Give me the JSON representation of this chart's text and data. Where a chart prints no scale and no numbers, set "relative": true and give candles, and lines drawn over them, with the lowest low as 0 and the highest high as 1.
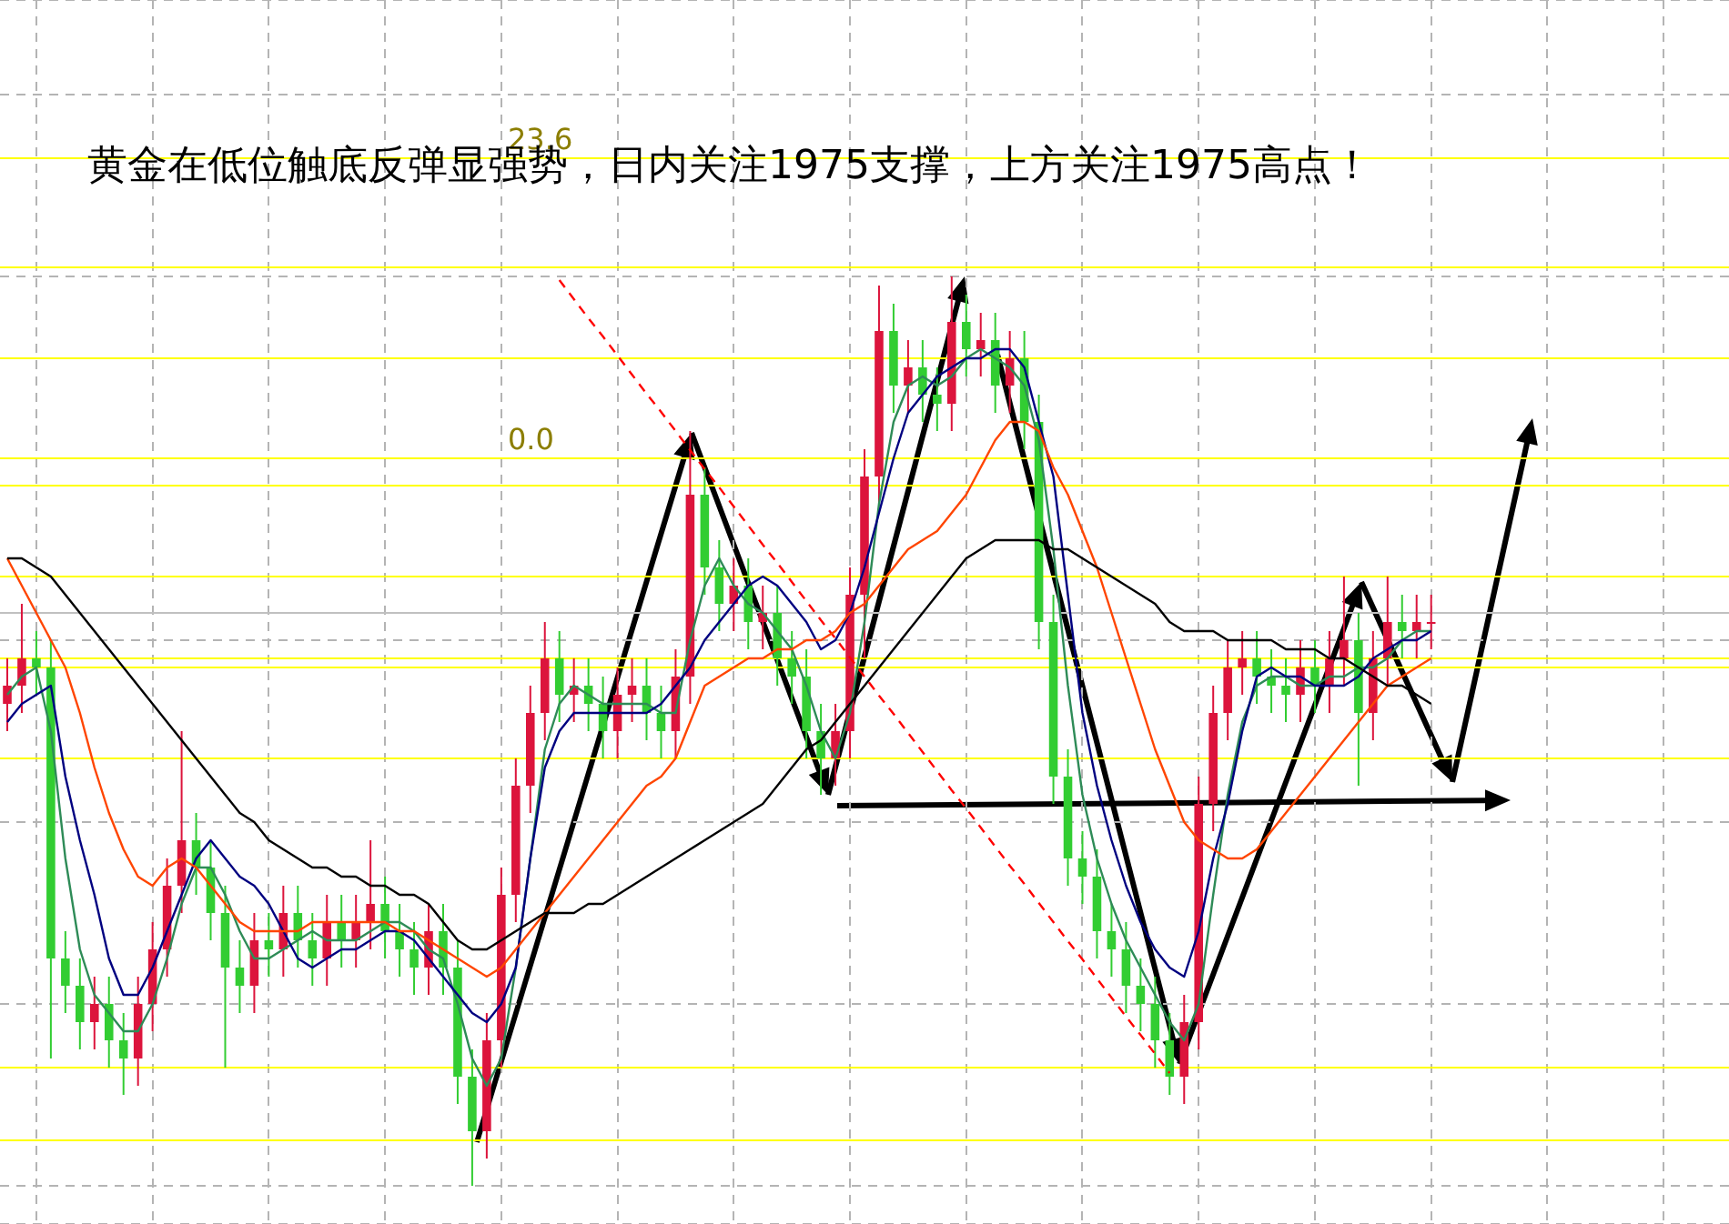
{
  "chart_data": {
    "type": "candlestick",
    "title": "黄金在低位触底反弹显强势，日内关注1975支撑，上方关注1975高点！",
    "relative": true,
    "grid": true,
    "legend": false,
    "marker": "none",
    "categories": [
      null,
      null,
      null,
      null,
      null,
      null,
      null,
      null,
      null,
      null,
      null,
      null,
      null,
      null,
      null,
      null,
      null,
      null,
      null,
      null,
      null,
      null,
      null,
      null,
      null,
      null,
      null,
      null,
      null,
      null,
      null,
      null,
      null,
      null,
      null,
      null,
      null,
      null,
      null,
      null,
      null,
      null,
      null,
      null,
      null,
      null,
      null,
      null,
      null,
      null,
      null,
      null,
      null,
      null,
      null,
      null,
      null,
      null,
      null,
      null,
      null,
      null,
      null,
      null,
      null,
      null,
      null,
      null,
      null,
      null,
      null,
      null,
      null,
      null,
      null,
      null,
      null,
      null,
      null,
      null,
      null,
      null,
      null,
      null,
      null,
      null,
      null,
      null,
      null,
      null,
      null,
      null,
      null,
      null,
      null,
      null,
      null,
      null,
      null,
      null,
      null,
      null,
      null,
      null,
      null,
      null,
      null,
      null,
      null,
      null,
      null,
      null,
      null,
      null,
      null,
      null,
      null,
      null,
      null
    ],
    "series": [
      {
        "type": "line",
        "color": "#000000",
        "values": [
          0.69,
          0.69,
          0.68,
          0.67,
          0.65,
          0.63,
          0.61,
          0.59,
          0.57,
          0.55,
          0.53,
          0.51,
          0.49,
          0.47,
          0.45,
          0.43,
          0.41,
          0.4,
          0.38,
          0.37,
          0.36,
          0.35,
          0.35,
          0.34,
          0.34,
          0.33,
          0.33,
          0.32,
          0.32,
          0.31,
          0.29,
          0.27,
          0.26,
          0.26,
          0.27,
          0.28,
          0.29,
          0.3,
          0.3,
          0.3,
          0.31,
          0.31,
          0.32,
          0.33,
          0.34,
          0.35,
          0.36,
          0.37,
          0.38,
          0.39,
          0.4,
          0.41,
          0.42,
          0.44,
          0.46,
          0.48,
          0.49,
          0.51,
          0.53,
          0.55,
          0.57,
          0.59,
          0.61,
          0.63,
          0.65,
          0.67,
          0.69,
          0.7,
          0.71,
          0.71,
          0.71,
          0.71,
          0.7,
          0.7,
          0.69,
          0.68,
          0.67,
          0.66,
          0.65,
          0.64,
          0.62,
          0.61,
          0.61,
          0.61,
          0.6,
          0.6,
          0.6,
          0.6,
          0.59,
          0.59,
          0.59,
          0.58,
          0.58,
          0.57,
          0.56,
          0.55,
          0.55,
          0.54,
          0.53,
          null,
          null,
          null,
          null,
          null,
          null,
          null,
          null,
          null,
          null,
          null,
          null,
          null,
          null,
          null,
          null,
          null,
          null,
          null,
          null
        ]
      },
      {
        "type": "line",
        "color": "#ff4500",
        "values": [
          0.69,
          0.66,
          0.63,
          0.6,
          0.57,
          0.52,
          0.46,
          0.41,
          0.37,
          0.34,
          0.33,
          0.35,
          0.36,
          0.35,
          0.33,
          0.31,
          0.29,
          0.28,
          0.28,
          0.28,
          0.28,
          0.29,
          0.29,
          0.29,
          0.29,
          0.29,
          0.29,
          0.28,
          0.28,
          0.27,
          0.26,
          0.25,
          0.24,
          0.23,
          0.24,
          0.26,
          0.28,
          0.3,
          0.32,
          0.34,
          0.36,
          0.38,
          0.4,
          0.42,
          0.44,
          0.45,
          0.47,
          0.51,
          0.55,
          0.56,
          0.57,
          0.58,
          0.58,
          0.59,
          0.59,
          0.6,
          0.6,
          0.61,
          0.63,
          0.64,
          0.66,
          0.68,
          0.7,
          0.71,
          0.72,
          0.74,
          0.76,
          0.79,
          0.82,
          0.84,
          0.84,
          0.83,
          0.79,
          0.76,
          0.72,
          0.68,
          0.63,
          0.58,
          0.53,
          0.48,
          0.44,
          0.4,
          0.38,
          0.37,
          0.36,
          0.36,
          0.37,
          0.39,
          0.41,
          0.43,
          0.45,
          0.47,
          0.49,
          0.51,
          0.53,
          0.55,
          0.56,
          0.57,
          0.58,
          null,
          null,
          null,
          null,
          null,
          null,
          null,
          null,
          null,
          null,
          null,
          null,
          null,
          null,
          null,
          null,
          null,
          null,
          null,
          null
        ]
      },
      {
        "type": "line",
        "color": "#000080",
        "values": [
          0.51,
          0.53,
          0.54,
          0.55,
          0.45,
          0.38,
          0.32,
          0.25,
          0.21,
          0.21,
          0.24,
          0.28,
          0.32,
          0.36,
          0.38,
          0.36,
          0.34,
          0.33,
          0.31,
          0.28,
          0.25,
          0.24,
          0.25,
          0.26,
          0.26,
          0.27,
          0.28,
          0.28,
          0.27,
          0.25,
          0.23,
          0.21,
          0.19,
          0.18,
          0.2,
          0.24,
          0.36,
          0.46,
          0.5,
          0.52,
          0.52,
          0.52,
          0.52,
          0.52,
          0.52,
          0.53,
          0.55,
          0.57,
          0.6,
          0.62,
          0.64,
          0.66,
          0.67,
          0.66,
          0.64,
          0.62,
          0.59,
          0.6,
          0.63,
          0.68,
          0.74,
          0.8,
          0.85,
          0.87,
          0.89,
          0.9,
          0.91,
          0.91,
          0.92,
          0.92,
          0.9,
          0.84,
          0.78,
          0.65,
          0.52,
          0.44,
          0.38,
          0.33,
          0.29,
          0.26,
          0.24,
          0.23,
          0.28,
          0.36,
          0.42,
          0.5,
          0.56,
          0.57,
          0.56,
          0.56,
          0.55,
          0.55,
          0.55,
          0.56,
          0.58,
          0.59,
          0.6,
          0.6,
          0.61,
          null,
          null,
          null,
          null,
          null,
          null,
          null,
          null,
          null,
          null,
          null,
          null,
          null,
          null,
          null,
          null,
          null,
          null,
          null,
          null
        ]
      },
      {
        "type": "line",
        "color": "#2e8b57",
        "values": [
          0.54,
          0.56,
          0.57,
          0.5,
          0.36,
          0.26,
          0.21,
          0.19,
          0.17,
          0.17,
          0.2,
          0.25,
          0.31,
          0.35,
          0.35,
          0.32,
          0.28,
          0.25,
          0.25,
          0.26,
          0.27,
          0.28,
          0.27,
          0.27,
          0.27,
          0.28,
          0.29,
          0.29,
          0.28,
          0.26,
          0.25,
          0.2,
          0.14,
          0.11,
          0.14,
          0.24,
          0.36,
          0.48,
          0.53,
          0.55,
          0.54,
          0.53,
          0.53,
          0.53,
          0.53,
          0.52,
          0.52,
          0.6,
          0.66,
          0.69,
          0.66,
          0.64,
          0.63,
          0.61,
          0.59,
          0.55,
          0.5,
          0.47,
          0.52,
          0.62,
          0.75,
          0.84,
          0.88,
          0.89,
          0.88,
          0.89,
          0.91,
          0.92,
          0.91,
          0.9,
          0.88,
          0.82,
          0.7,
          0.55,
          0.43,
          0.36,
          0.31,
          0.27,
          0.24,
          0.21,
          0.18,
          0.16,
          0.2,
          0.32,
          0.43,
          0.51,
          0.55,
          0.56,
          0.56,
          0.55,
          0.55,
          0.56,
          0.56,
          0.57,
          0.57,
          0.58,
          0.6,
          0.61,
          0.61,
          null,
          null,
          null,
          null,
          null,
          null,
          null,
          null,
          null,
          null,
          null,
          null,
          null,
          null,
          null,
          null,
          null,
          null,
          null,
          null
        ]
      },
      {
        "type": "line",
        "color": "#ff0000",
        "line_style": "dashed",
        "values": [
          null,
          null,
          null,
          null,
          null,
          null,
          null,
          null,
          null,
          null,
          null,
          null,
          null,
          null,
          null,
          null,
          null,
          null,
          null,
          null,
          null,
          null,
          null,
          null,
          null,
          null,
          null,
          null,
          null,
          null,
          null,
          null,
          null,
          null,
          null,
          null,
          null,
          null,
          0.996,
          0.975,
          0.954,
          0.934,
          0.913,
          0.892,
          0.871,
          0.851,
          0.83,
          0.809,
          0.788,
          0.768,
          0.747,
          0.726,
          0.705,
          0.685,
          0.664,
          0.643,
          0.622,
          0.602,
          0.581,
          0.56,
          0.539,
          0.519,
          0.498,
          0.477,
          0.456,
          0.435,
          0.415,
          0.394,
          0.373,
          0.352,
          0.332,
          0.311,
          0.29,
          0.269,
          0.249,
          0.228,
          0.207,
          0.186,
          0.166,
          0.145,
          0.124,
          null,
          null,
          null,
          null,
          null,
          null,
          null,
          null,
          null,
          null,
          null,
          null,
          null,
          null,
          null,
          null,
          null,
          null,
          null,
          null,
          null,
          null,
          null,
          null,
          null,
          null,
          null,
          null,
          null,
          null,
          null,
          null,
          null,
          null,
          null,
          null,
          null,
          null
        ]
      },
      {
        "ohlc": [
          [
            0.53,
            0.58,
            0.5,
            0.55
          ],
          [
            0.55,
            0.64,
            0.52,
            0.58
          ],
          [
            0.58,
            0.61,
            0.54,
            0.57
          ],
          [
            0.57,
            0.6,
            0.14,
            0.25
          ],
          [
            0.25,
            0.28,
            0.19,
            0.22
          ],
          [
            0.22,
            0.25,
            0.15,
            0.18
          ],
          [
            0.18,
            0.23,
            0.15,
            0.2
          ],
          [
            0.2,
            0.23,
            0.13,
            0.16
          ],
          [
            0.16,
            0.19,
            0.1,
            0.14
          ],
          [
            0.14,
            0.23,
            0.11,
            0.2
          ],
          [
            0.2,
            0.29,
            0.17,
            0.26
          ],
          [
            0.26,
            0.36,
            0.23,
            0.33
          ],
          [
            0.33,
            0.5,
            0.3,
            0.38
          ],
          [
            0.38,
            0.41,
            0.32,
            0.35
          ],
          [
            0.35,
            0.38,
            0.27,
            0.3
          ],
          [
            0.3,
            0.33,
            0.13,
            0.24
          ],
          [
            0.24,
            0.27,
            0.19,
            0.22
          ],
          [
            0.22,
            0.3,
            0.19,
            0.27
          ],
          [
            0.27,
            0.3,
            0.23,
            0.26
          ],
          [
            0.26,
            0.33,
            0.23,
            0.3
          ],
          [
            0.3,
            0.33,
            0.24,
            0.27
          ],
          [
            0.27,
            0.3,
            0.22,
            0.25
          ],
          [
            0.25,
            0.32,
            0.22,
            0.29
          ],
          [
            0.29,
            0.32,
            0.24,
            0.27
          ],
          [
            0.27,
            0.32,
            0.24,
            0.29
          ],
          [
            0.29,
            0.38,
            0.26,
            0.31
          ],
          [
            0.31,
            0.34,
            0.25,
            0.28
          ],
          [
            0.28,
            0.31,
            0.23,
            0.26
          ],
          [
            0.26,
            0.29,
            0.21,
            0.24
          ],
          [
            0.24,
            0.31,
            0.21,
            0.28
          ],
          [
            0.28,
            0.31,
            0.21,
            0.24
          ],
          [
            0.24,
            0.27,
            0.09,
            0.12
          ],
          [
            0.12,
            0.15,
            0.0,
            0.06
          ],
          [
            0.06,
            0.19,
            0.03,
            0.16
          ],
          [
            0.16,
            0.35,
            0.13,
            0.32
          ],
          [
            0.32,
            0.47,
            0.29,
            0.44
          ],
          [
            0.44,
            0.55,
            0.41,
            0.52
          ],
          [
            0.52,
            0.62,
            0.49,
            0.58
          ],
          [
            0.58,
            0.61,
            0.51,
            0.54
          ],
          [
            0.54,
            0.58,
            0.51,
            0.55
          ],
          [
            0.55,
            0.58,
            0.5,
            0.53
          ],
          [
            0.53,
            0.56,
            0.47,
            0.5
          ],
          [
            0.5,
            0.57,
            0.47,
            0.54
          ],
          [
            0.54,
            0.58,
            0.51,
            0.55
          ],
          [
            0.55,
            0.58,
            0.49,
            0.52
          ],
          [
            0.52,
            0.55,
            0.47,
            0.5
          ],
          [
            0.5,
            0.59,
            0.47,
            0.56
          ],
          [
            0.56,
            0.83,
            0.53,
            0.76
          ],
          [
            0.76,
            0.79,
            0.65,
            0.68
          ],
          [
            0.68,
            0.71,
            0.61,
            0.64
          ],
          [
            0.64,
            0.69,
            0.61,
            0.66
          ],
          [
            0.66,
            0.69,
            0.59,
            0.62
          ],
          [
            0.62,
            0.66,
            0.59,
            0.63
          ],
          [
            0.63,
            0.66,
            0.55,
            0.58
          ],
          [
            0.58,
            0.61,
            0.53,
            0.56
          ],
          [
            0.56,
            0.59,
            0.47,
            0.5
          ],
          [
            0.5,
            0.53,
            0.43,
            0.47
          ],
          [
            0.47,
            0.53,
            0.44,
            0.5
          ],
          [
            0.5,
            0.68,
            0.47,
            0.65
          ],
          [
            0.65,
            0.81,
            0.58,
            0.78
          ],
          [
            0.78,
            0.99,
            0.75,
            0.94
          ],
          [
            0.94,
            0.97,
            0.85,
            0.88
          ],
          [
            0.88,
            0.93,
            0.85,
            0.9
          ],
          [
            0.9,
            0.93,
            0.84,
            0.87
          ],
          [
            0.87,
            0.9,
            0.83,
            0.86
          ],
          [
            0.86,
            1.0,
            0.83,
            0.95
          ],
          [
            0.95,
            0.98,
            0.89,
            0.92
          ],
          [
            0.92,
            0.96,
            0.89,
            0.93
          ],
          [
            0.93,
            0.96,
            0.85,
            0.88
          ],
          [
            0.88,
            0.94,
            0.85,
            0.91
          ],
          [
            0.91,
            0.94,
            0.81,
            0.84
          ],
          [
            0.84,
            0.87,
            0.59,
            0.62
          ],
          [
            0.62,
            0.65,
            0.42,
            0.45
          ],
          [
            0.45,
            0.48,
            0.33,
            0.36
          ],
          [
            0.36,
            0.39,
            0.31,
            0.34
          ],
          [
            0.34,
            0.37,
            0.25,
            0.28
          ],
          [
            0.28,
            0.31,
            0.23,
            0.26
          ],
          [
            0.26,
            0.29,
            0.19,
            0.22
          ],
          [
            0.22,
            0.25,
            0.17,
            0.2
          ],
          [
            0.2,
            0.23,
            0.13,
            0.16
          ],
          [
            0.16,
            0.19,
            0.1,
            0.12
          ],
          [
            0.12,
            0.21,
            0.09,
            0.18
          ],
          [
            0.18,
            0.45,
            0.15,
            0.42
          ],
          [
            0.42,
            0.55,
            0.39,
            0.52
          ],
          [
            0.52,
            0.6,
            0.49,
            0.57
          ],
          [
            0.57,
            0.61,
            0.54,
            0.58
          ],
          [
            0.58,
            0.61,
            0.53,
            0.56
          ],
          [
            0.56,
            0.59,
            0.52,
            0.55
          ],
          [
            0.55,
            0.58,
            0.51,
            0.54
          ],
          [
            0.54,
            0.6,
            0.51,
            0.57
          ],
          [
            0.57,
            0.6,
            0.52,
            0.55
          ],
          [
            0.55,
            0.61,
            0.52,
            0.58
          ],
          [
            0.58,
            0.67,
            0.55,
            0.6
          ],
          [
            0.6,
            0.63,
            0.44,
            0.52
          ],
          [
            0.52,
            0.61,
            0.49,
            0.58
          ],
          [
            0.58,
            0.67,
            0.55,
            0.62
          ],
          [
            0.62,
            0.65,
            0.58,
            0.61
          ],
          [
            0.61,
            0.65,
            0.58,
            0.62
          ],
          [
            0.62,
            0.65,
            0.59,
            0.62
          ],
          null,
          null,
          null,
          null,
          null,
          null,
          null,
          null,
          null,
          null,
          null,
          null,
          null,
          null,
          null,
          null,
          null,
          null,
          null,
          null
        ],
        "colors": [
          "#dc143c",
          "#dc143c",
          "#32cd32",
          "#32cd32",
          "#32cd32",
          "#32cd32",
          "#dc143c",
          "#32cd32",
          "#32cd32",
          "#dc143c",
          "#dc143c",
          "#dc143c",
          "#dc143c",
          "#32cd32",
          "#32cd32",
          "#32cd32",
          "#32cd32",
          "#dc143c",
          "#32cd32",
          "#dc143c",
          "#32cd32",
          "#32cd32",
          "#dc143c",
          "#32cd32",
          "#dc143c",
          "#dc143c",
          "#32cd32",
          "#32cd32",
          "#32cd32",
          "#dc143c",
          "#32cd32",
          "#32cd32",
          "#32cd32",
          "#dc143c",
          "#dc143c",
          "#dc143c",
          "#dc143c",
          "#dc143c",
          "#32cd32",
          "#dc143c",
          "#32cd32",
          "#32cd32",
          "#dc143c",
          "#dc143c",
          "#32cd32",
          "#32cd32",
          "#dc143c",
          "#dc143c",
          "#32cd32",
          "#32cd32",
          "#dc143c",
          "#32cd32",
          "#dc143c",
          "#32cd32",
          "#32cd32",
          "#32cd32",
          "#32cd32",
          "#dc143c",
          "#dc143c",
          "#dc143c",
          "#dc143c",
          "#32cd32",
          "#dc143c",
          "#32cd32",
          "#32cd32",
          "#dc143c",
          "#32cd32",
          "#dc143c",
          "#32cd32",
          "#dc143c",
          "#32cd32",
          "#32cd32",
          "#32cd32",
          "#32cd32",
          "#32cd32",
          "#32cd32",
          "#32cd32",
          "#32cd32",
          "#32cd32",
          "#32cd32",
          "#32cd32",
          "#dc143c",
          "#dc143c",
          "#dc143c",
          "#dc143c",
          "#dc143c",
          "#32cd32",
          "#32cd32",
          "#32cd32",
          "#dc143c",
          "#32cd32",
          "#dc143c",
          "#dc143c",
          "#32cd32",
          "#dc143c",
          "#dc143c",
          "#32cd32",
          "#dc143c",
          "#dc143c",
          null,
          null,
          null,
          null,
          null,
          null,
          null,
          null,
          null,
          null,
          null,
          null,
          null,
          null,
          null,
          null,
          null,
          null,
          null,
          null
        ]
      }
    ],
    "ref_lines": [
      {
        "axis": "y",
        "value": 1.13,
        "color": "#ffff00"
      },
      {
        "axis": "y",
        "value": 1.01,
        "color": "#ffff00"
      },
      {
        "axis": "y",
        "value": 0.91,
        "color": "#ffff00"
      },
      {
        "axis": "y",
        "value": 0.8,
        "color": "#ffff00"
      },
      {
        "axis": "y",
        "value": 0.77,
        "color": "#ffff00"
      },
      {
        "axis": "y",
        "value": 0.67,
        "color": "#ffff00"
      },
      {
        "axis": "y",
        "value": 0.63,
        "color": "#c0c0c0"
      },
      {
        "axis": "y",
        "value": 0.58,
        "color": "#ffff00"
      },
      {
        "axis": "y",
        "value": 0.57,
        "color": "#ffff00"
      },
      {
        "axis": "y",
        "value": 0.47,
        "color": "#ffff00"
      },
      {
        "axis": "y",
        "value": 0.13,
        "color": "#ffff00"
      },
      {
        "axis": "y",
        "value": 0.05,
        "color": "#ffff00"
      }
    ],
    "annotations": [
      {
        "text": "23.6",
        "y": 1.13
      },
      {
        "text": "0.0",
        "y": 0.8
      }
    ]
  }
}
